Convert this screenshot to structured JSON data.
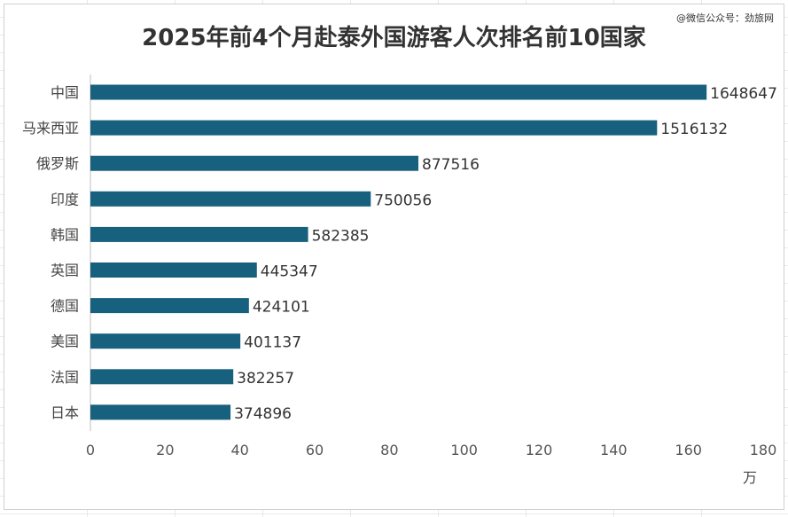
{
  "chart_data": {
    "type": "bar",
    "orientation": "horizontal",
    "title": "2025年前4个月赴泰外国游客人次排名前10国家",
    "watermark": "@微信公众号：劲旅网",
    "categories": [
      "中国",
      "马来西亚",
      "俄罗斯",
      "印度",
      "韩国",
      "英国",
      "德国",
      "美国",
      "法国",
      "日本"
    ],
    "values": [
      1648647,
      1516132,
      877516,
      750056,
      582385,
      445347,
      424101,
      401137,
      382257,
      374896
    ],
    "value_labels": [
      "1648647",
      "1516132",
      "877516",
      "750056",
      "582385",
      "445347",
      "424101",
      "401137",
      "382257",
      "374896"
    ],
    "x_ticks": [
      "0",
      "20",
      "40",
      "60",
      "80",
      "100",
      "120",
      "140",
      "160",
      "180"
    ],
    "x_unit": "万",
    "xlim": [
      0,
      180
    ],
    "xlabel": "",
    "ylabel": "",
    "bar_color": "#17607e",
    "grid": false,
    "legend": "none"
  }
}
